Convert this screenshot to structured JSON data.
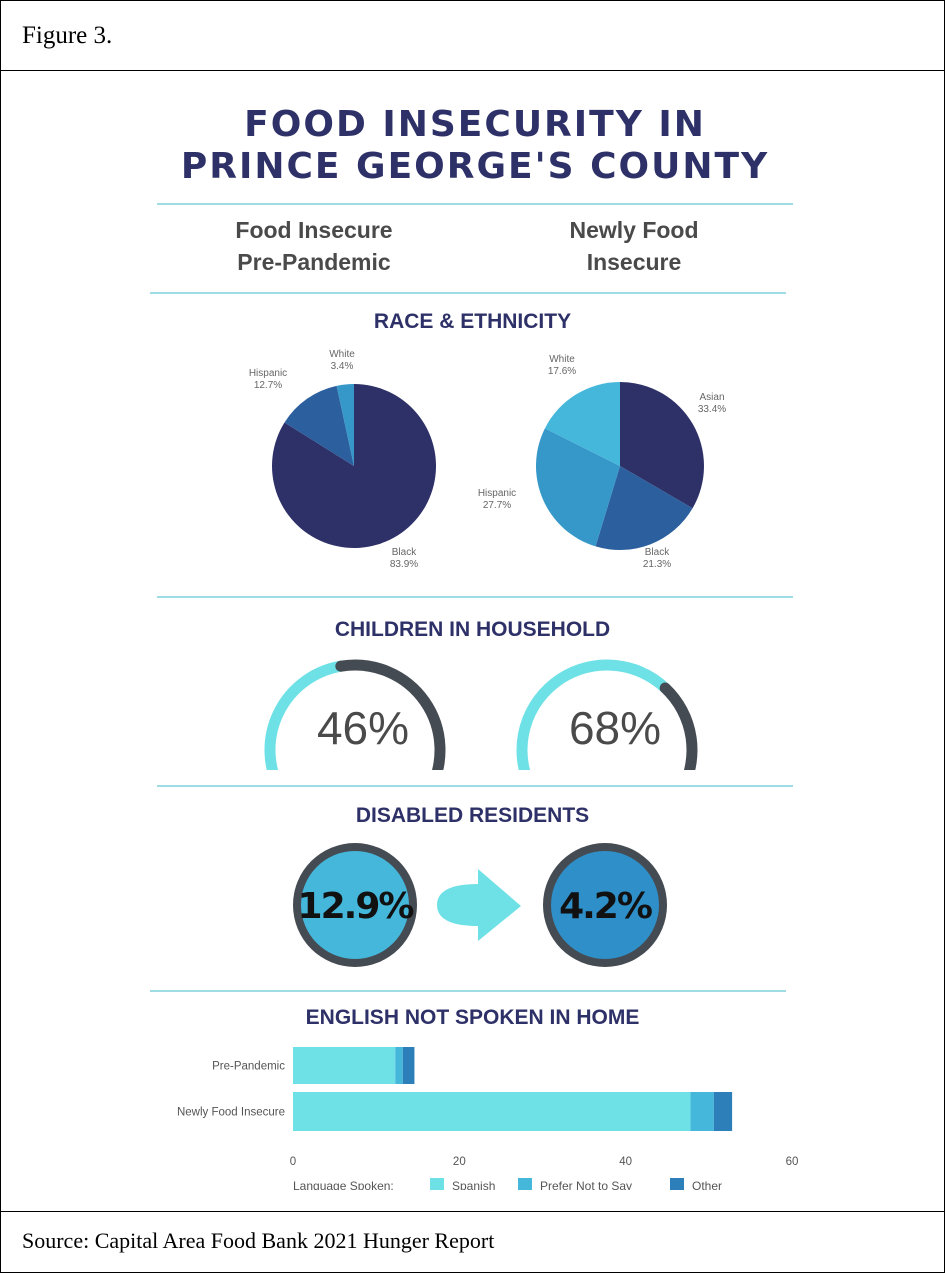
{
  "figure_label": "Figure 3.",
  "source": "Source: Capital Area Food Bank 2021 Hunger Report",
  "title_line1": "FOOD INSECURITY IN",
  "title_line2": "PRINCE GEORGE'S COUNTY",
  "columns": {
    "left_line1": "Food Insecure",
    "left_line2": "Pre-Pandemic",
    "right_line1": "Newly Food",
    "right_line2": "Insecure"
  },
  "colors": {
    "dark_navy": "#2e3168",
    "mid_blue": "#2c5f9e",
    "steel_blue": "#3598c9",
    "light_blue": "#45b7db",
    "cyan": "#6de1e6",
    "gray": "#454b52"
  },
  "chart_data": [
    {
      "type": "pie",
      "title": "RACE & ETHNICITY",
      "group": "Food Insecure Pre-Pandemic",
      "slices": [
        {
          "label": "Black",
          "value": 83.9,
          "display": "83.9%",
          "color": "#2e3168"
        },
        {
          "label": "Hispanic",
          "value": 12.7,
          "display": "12.7%",
          "color": "#2c5f9e"
        },
        {
          "label": "White",
          "value": 3.4,
          "display": "3.4%",
          "color": "#3598c9"
        }
      ]
    },
    {
      "type": "pie",
      "title": "RACE & ETHNICITY",
      "group": "Newly Food Insecure",
      "slices": [
        {
          "label": "Asian",
          "value": 33.4,
          "display": "33.4%",
          "color": "#2e3168"
        },
        {
          "label": "Black",
          "value": 21.3,
          "display": "21.3%",
          "color": "#2c5f9e"
        },
        {
          "label": "Hispanic",
          "value": 27.7,
          "display": "27.7%",
          "color": "#3598c9"
        },
        {
          "label": "White",
          "value": 17.6,
          "display": "17.6%",
          "color": "#45b7db"
        }
      ]
    },
    {
      "type": "gauge",
      "title": "CHILDREN IN  HOUSEHOLD",
      "values": [
        {
          "group": "Food Insecure Pre-Pandemic",
          "value": 46,
          "display": "46%"
        },
        {
          "group": "Newly Food Insecure",
          "value": 68,
          "display": "68%"
        }
      ]
    },
    {
      "type": "comparison",
      "title": "DISABLED RESIDENTS",
      "values": [
        {
          "group": "Food Insecure Pre-Pandemic",
          "value": 12.9,
          "display": "12.9%"
        },
        {
          "group": "Newly Food Insecure",
          "value": 4.2,
          "display": "4.2%"
        }
      ]
    },
    {
      "type": "bar",
      "orientation": "horizontal",
      "stacked": true,
      "title": "ENGLISH NOT SPOKEN IN HOME",
      "categories": [
        "Pre-Pandemic",
        "Newly Food Insecure"
      ],
      "series": [
        {
          "name": "Spanish",
          "values": [
            12.3,
            47.8
          ],
          "color": "#6de1e6"
        },
        {
          "name": "Prefer Not to Say",
          "values": [
            0.9,
            2.8
          ],
          "color": "#45b7db"
        },
        {
          "name": "Other",
          "values": [
            1.4,
            2.2
          ],
          "color": "#2c7fb8"
        }
      ],
      "xlim": [
        0,
        60
      ],
      "xticks": [
        0,
        20,
        40,
        60
      ],
      "legend_title": "Language Spoken:",
      "legend_position": "bottom"
    }
  ]
}
